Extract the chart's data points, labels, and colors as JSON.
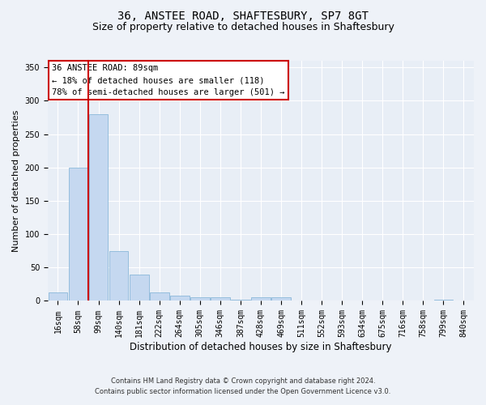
{
  "title1": "36, ANSTEE ROAD, SHAFTESBURY, SP7 8GT",
  "title2": "Size of property relative to detached houses in Shaftesbury",
  "xlabel": "Distribution of detached houses by size in Shaftesbury",
  "ylabel": "Number of detached properties",
  "footer1": "Contains HM Land Registry data © Crown copyright and database right 2024.",
  "footer2": "Contains public sector information licensed under the Open Government Licence v3.0.",
  "bin_labels": [
    "16sqm",
    "58sqm",
    "99sqm",
    "140sqm",
    "181sqm",
    "222sqm",
    "264sqm",
    "305sqm",
    "346sqm",
    "387sqm",
    "428sqm",
    "469sqm",
    "511sqm",
    "552sqm",
    "593sqm",
    "634sqm",
    "675sqm",
    "716sqm",
    "758sqm",
    "799sqm",
    "840sqm"
  ],
  "bar_heights": [
    13,
    200,
    280,
    75,
    40,
    13,
    8,
    6,
    5,
    2,
    5,
    5,
    1,
    0,
    0,
    0,
    0,
    0,
    0,
    2,
    0
  ],
  "bar_color": "#c5d8f0",
  "bar_edge_color": "#7bafd4",
  "vline_color": "#cc0000",
  "vline_x": 1.5,
  "annotation_text": "36 ANSTEE ROAD: 89sqm\n← 18% of detached houses are smaller (118)\n78% of semi-detached houses are larger (501) →",
  "annotation_box_color": "#ffffff",
  "annotation_box_edge": "#cc0000",
  "ylim": [
    0,
    360
  ],
  "yticks": [
    0,
    50,
    100,
    150,
    200,
    250,
    300,
    350
  ],
  "background_color": "#eef2f8",
  "plot_bg_color": "#e8eef6",
  "grid_color": "#ffffff",
  "title1_fontsize": 10,
  "title2_fontsize": 9,
  "tick_fontsize": 7,
  "ylabel_fontsize": 8,
  "xlabel_fontsize": 8.5,
  "footer_fontsize": 6,
  "annot_fontsize": 7.5
}
